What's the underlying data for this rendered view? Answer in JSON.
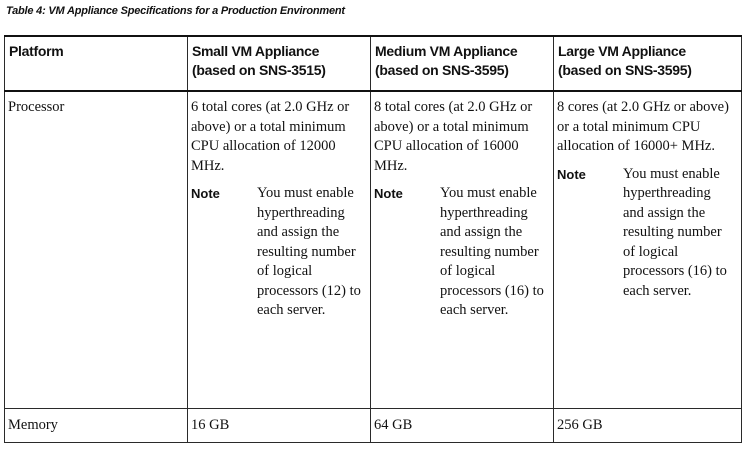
{
  "caption": "Table 4: VM Appliance Specifications for a Production Environment",
  "table": {
    "headers": [
      {
        "line1": "Platform",
        "line2": ""
      },
      {
        "line1": "Small VM Appliance",
        "line2": "(based on SNS-3515)"
      },
      {
        "line1": "Medium VM Appliance",
        "line2": "(based on SNS-3595)"
      },
      {
        "line1": "Large VM Appliance",
        "line2": "(based on SNS-3595)"
      }
    ],
    "rows": [
      {
        "label": "Processor",
        "cells": [
          {
            "text": "6 total cores (at 2.0 GHz or above) or a total minimum CPU allocation of 12000 MHz.",
            "note_label": "Note",
            "note_text": "You must enable hyperthreading and assign the resulting number of logical processors (12) to each server."
          },
          {
            "text": "8 total cores (at 2.0 GHz or above) or a total minimum CPU allocation of 16000 MHz.",
            "note_label": "Note",
            "note_text": "You must enable hyperthreading and assign the resulting number of logical processors (16) to each server."
          },
          {
            "text": "8 cores (at 2.0 GHz or above) or a total minimum CPU allocation of 16000+ MHz.",
            "note_label": "Note",
            "note_text": "You must enable hyperthreading and assign the resulting number of logical processors (16) to each server."
          }
        ]
      },
      {
        "label": "Memory",
        "cells": [
          {
            "text": "16 GB"
          },
          {
            "text": "64 GB"
          },
          {
            "text": "256 GB"
          }
        ]
      }
    ]
  }
}
